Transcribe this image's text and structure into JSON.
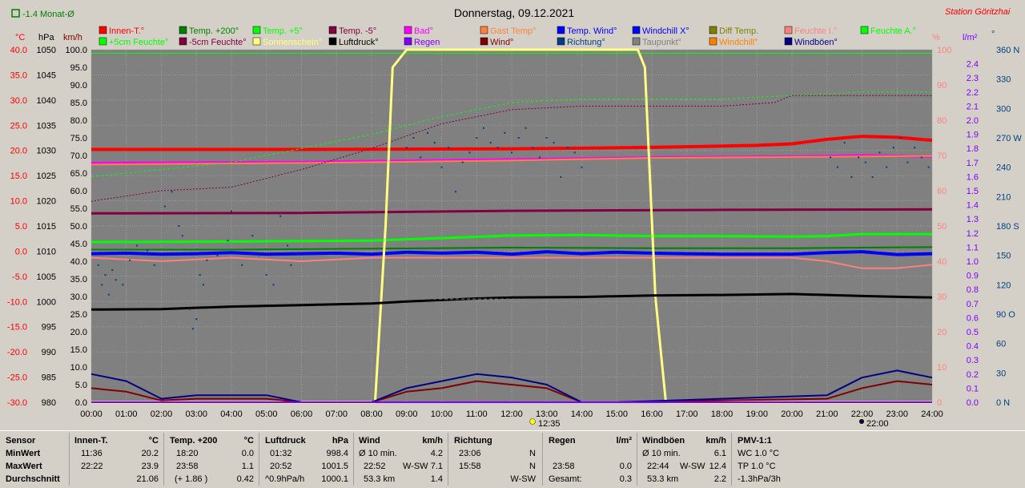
{
  "header": {
    "title": "Donnerstag, 09.12.2021",
    "station": "Station Göritzhai",
    "monthly_avg_label": "-1.4 Monat-Ø"
  },
  "axes": {
    "unit_celsius": "°C",
    "unit_hpa": "hPa",
    "unit_kmh": "km/h",
    "unit_percent": "%",
    "unit_lm2": "l/m²",
    "unit_deg": "°",
    "temp_ticks": [
      "40.0",
      "35.0",
      "30.0",
      "25.0",
      "20.0",
      "15.0",
      "10.0",
      "5.0",
      "0.0",
      "-5.0",
      "-10.0",
      "-15.0",
      "-20.0",
      "-25.0",
      "-30.0"
    ],
    "hpa_ticks": [
      "1050",
      "1045",
      "1040",
      "1035",
      "1030",
      "1025",
      "1020",
      "1015",
      "1010",
      "1005",
      "1000",
      "995",
      "990",
      "985",
      "980"
    ],
    "kmh_ticks": [
      "100.0",
      "95.0",
      "90.0",
      "85.0",
      "80.0",
      "75.0",
      "70.0",
      "65.0",
      "60.0",
      "55.0",
      "50.0",
      "45.0",
      "40.0",
      "35.0",
      "30.0",
      "25.0",
      "20.0",
      "15.0",
      "10.0",
      "5.0",
      "0.0"
    ],
    "pct_ticks": [
      "100",
      "90",
      "80",
      "70",
      "60",
      "50",
      "40",
      "30",
      "20",
      "10",
      "0"
    ],
    "rain_ticks": [
      "2.4",
      "2.3",
      "2.2",
      "2.1",
      "2.0",
      "1.9",
      "1.8",
      "1.7",
      "1.6",
      "1.5",
      "1.4",
      "1.3",
      "1.2",
      "1.1",
      "1.0",
      "0.9",
      "0.8",
      "0.7",
      "0.6",
      "0.5",
      "0.4",
      "0.3",
      "0.2",
      "0.1",
      "0.0"
    ],
    "dir_ticks": [
      "360 N",
      "330",
      "300",
      "270 W",
      "240",
      "210",
      "180 S",
      "150",
      "120",
      "90 O",
      "60",
      "30",
      "0 N"
    ],
    "time_ticks": [
      "00:00",
      "01:00",
      "02:00",
      "03:00",
      "04:00",
      "05:00",
      "06:00",
      "07:00",
      "08:00",
      "09:00",
      "10:00",
      "11:00",
      "12:00",
      "13:00",
      "14:00",
      "15:00",
      "16:00",
      "17:00",
      "18:00",
      "19:00",
      "20:00",
      "21:00",
      "22:00",
      "23:00",
      "24:00"
    ],
    "sun_marker_noon": "12:35",
    "sun_marker_night": "22:00"
  },
  "legend": [
    {
      "label": "Innen-T.°",
      "color": "#ff0000"
    },
    {
      "label": "Temp. +200°",
      "color": "#008000"
    },
    {
      "label": "Temp. +5°",
      "color": "#00ff00"
    },
    {
      "label": "Temp. -5°",
      "color": "#800040"
    },
    {
      "label": "Bad°",
      "color": "#ff00ff"
    },
    {
      "label": "Gast Temp°",
      "color": "#ff8040"
    },
    {
      "label": "Temp. Wind°",
      "color": "#0000ff"
    },
    {
      "label": "Windchill X°",
      "color": "#0000ff"
    },
    {
      "label": "Diff Temp.",
      "color": "#808000"
    },
    {
      "label": "Feuchte I.°",
      "color": "#ff8080"
    },
    {
      "label": "Feuchte A.°",
      "color": "#00ff00"
    },
    {
      "label": "+5cm Feuchte°",
      "color": "#00ff00"
    },
    {
      "label": "-5cm Feuchte°",
      "color": "#800040"
    },
    {
      "label": "Sonnenschein°",
      "color": "#ffff80"
    },
    {
      "label": "Luftdruck°",
      "color": "#000000"
    },
    {
      "label": "Regen",
      "color": "#8000ff"
    },
    {
      "label": "Wind°",
      "color": "#800000"
    },
    {
      "label": "Richtung°",
      "color": "#004080"
    },
    {
      "label": "Taupunkt°",
      "color": "#808080"
    },
    {
      "label": "Windchill°",
      "color": "#ff8000"
    },
    {
      "label": "Windböen°",
      "color": "#000080"
    }
  ],
  "chart_data": {
    "type": "line",
    "title": "Donnerstag, 09.12.2021",
    "xlabel": "",
    "x_unit": "hours",
    "xlim": [
      0,
      24
    ],
    "temp_ylim": [
      -30,
      40
    ],
    "pct_ylim": [
      0,
      100
    ],
    "kmh_ylim": [
      0,
      100
    ],
    "rain_ylim": [
      0,
      2.5
    ],
    "dir_ylim": [
      0,
      360
    ],
    "grid": true,
    "series": [
      {
        "name": "Innen-T.°",
        "axis": "temp",
        "color": "#ff0000",
        "width": 4,
        "x": [
          0,
          6,
          12,
          16,
          19,
          20,
          21,
          22,
          23,
          24
        ],
        "y": [
          20.2,
          20.2,
          20.3,
          20.6,
          21.0,
          21.3,
          22.2,
          22.8,
          22.6,
          22.0
        ]
      },
      {
        "name": "Bad°",
        "axis": "temp",
        "color": "#ff00ff",
        "width": 3,
        "x": [
          0,
          6,
          12,
          16,
          20,
          22,
          24
        ],
        "y": [
          17.5,
          17.7,
          18.2,
          18.6,
          18.8,
          19.0,
          18.8
        ]
      },
      {
        "name": "Gast Temp°",
        "axis": "temp",
        "color": "#ff8040",
        "width": 2,
        "x": [
          0,
          6,
          12,
          16,
          20,
          24
        ],
        "y": [
          17.2,
          17.5,
          18.0,
          18.5,
          18.7,
          18.9
        ]
      },
      {
        "name": "Temp. -5°",
        "axis": "temp",
        "color": "#800040",
        "width": 3,
        "x": [
          0,
          6,
          12,
          18,
          24
        ],
        "y": [
          7.5,
          7.6,
          8.0,
          8.2,
          8.3
        ]
      },
      {
        "name": "Temp. +5°",
        "axis": "temp",
        "color": "#00ff00",
        "width": 3,
        "x": [
          0,
          4,
          8,
          10,
          12,
          14,
          16,
          18,
          20,
          21,
          22,
          24
        ],
        "y": [
          1.8,
          1.9,
          2.1,
          2.6,
          3.1,
          3.2,
          3.0,
          3.0,
          2.9,
          3.0,
          3.4,
          3.4
        ]
      },
      {
        "name": "Temp. +200°",
        "axis": "temp",
        "color": "#008000",
        "width": 2,
        "x": [
          0,
          4,
          8,
          12,
          16,
          20,
          24
        ],
        "y": [
          0.3,
          0.3,
          0.5,
          0.7,
          0.6,
          0.6,
          0.8
        ]
      },
      {
        "name": "Temp. Wind°",
        "axis": "temp",
        "color": "#0000ff",
        "width": 4,
        "x": [
          0,
          1,
          2,
          3,
          4,
          5,
          6,
          7,
          8,
          9,
          10,
          11,
          12,
          13,
          14,
          15,
          16,
          17,
          18,
          19,
          20,
          21,
          22,
          23,
          24
        ],
        "y": [
          -0.5,
          -0.4,
          -0.6,
          -0.5,
          -0.3,
          -0.6,
          -0.5,
          -0.4,
          -0.6,
          -0.2,
          -0.4,
          -0.2,
          -0.6,
          -0.1,
          -0.5,
          -0.2,
          -0.4,
          -0.5,
          -0.6,
          -0.6,
          -0.6,
          -0.3,
          -0.1,
          -0.7,
          -0.5
        ]
      },
      {
        "name": "Feuchte I.°",
        "axis": "pct",
        "color": "#ff8080",
        "width": 2,
        "x": [
          0,
          2,
          4,
          6,
          8,
          10,
          12,
          14,
          16,
          18,
          20,
          21,
          22,
          23,
          24
        ],
        "y": [
          41,
          40,
          41,
          40,
          41,
          41,
          41,
          41,
          41,
          41,
          41,
          40,
          38,
          38,
          39
        ]
      },
      {
        "name": "Feuchte A.°",
        "axis": "pct",
        "color": "#00ff00",
        "width": 1,
        "x": [
          0,
          24
        ],
        "y": [
          99,
          99
        ]
      },
      {
        "name": "+5cm Feuchte°",
        "axis": "pct",
        "color": "#00ff00",
        "width": 1,
        "dash": "3,3",
        "x": [
          0,
          2,
          4,
          6,
          8,
          10,
          12,
          14,
          16,
          18,
          20,
          22,
          24
        ],
        "y": [
          64,
          66,
          68,
          72,
          76,
          81,
          85,
          86,
          86,
          86,
          87,
          88,
          88
        ]
      },
      {
        "name": "-5cm Feuchte°",
        "axis": "pct",
        "color": "#800040",
        "width": 1,
        "dash": "2,2",
        "x": [
          0,
          2,
          4,
          6,
          8,
          10,
          12,
          14,
          16,
          18,
          19.5,
          20,
          22,
          24
        ],
        "y": [
          57,
          60,
          61,
          66,
          72,
          79,
          83,
          84,
          84,
          84,
          85,
          87,
          87,
          87
        ]
      },
      {
        "name": "Sonnenschein°",
        "axis": "pct",
        "color": "#ffff80",
        "width": 3,
        "x": [
          0,
          8.1,
          8.4,
          8.6,
          9.0,
          15.6,
          15.8,
          16.1,
          16.4,
          24
        ],
        "y": [
          0,
          0,
          50,
          95,
          100,
          100,
          95,
          30,
          0,
          0
        ]
      },
      {
        "name": "Luftdruck°",
        "axis": "hpa",
        "color": "#000000",
        "width": 3,
        "x": [
          0,
          2,
          4,
          6,
          8,
          9,
          10,
          11,
          12,
          14,
          16,
          18,
          20,
          22,
          24
        ],
        "y": [
          998.4,
          998.5,
          999.0,
          999.3,
          999.6,
          1000.0,
          1000.3,
          1000.6,
          1000.8,
          1000.9,
          1001.2,
          1001.3,
          1001.5,
          1001.1,
          1000.8
        ]
      },
      {
        "name": "Wind°",
        "axis": "kmh",
        "color": "#800000",
        "width": 2,
        "x": [
          0,
          1,
          2,
          3,
          4,
          5,
          6,
          8,
          9,
          10,
          11,
          12,
          13,
          14,
          15,
          21,
          22,
          23,
          24
        ],
        "y": [
          4,
          3,
          0.5,
          1,
          1,
          1,
          0,
          0,
          3,
          4,
          6,
          5,
          4,
          0,
          0,
          1,
          4,
          6,
          5
        ]
      },
      {
        "name": "Windböen°",
        "axis": "kmh",
        "color": "#000080",
        "width": 2,
        "x": [
          0,
          1,
          2,
          3,
          4,
          5,
          6,
          8,
          9,
          10,
          11,
          12,
          13,
          14,
          15,
          21,
          22,
          23,
          24
        ],
        "y": [
          8,
          6,
          1,
          2,
          2,
          2,
          0,
          0,
          4,
          6,
          8,
          7,
          5,
          0,
          0,
          2,
          7,
          9,
          7
        ]
      },
      {
        "name": "Regen",
        "axis": "rain",
        "color": "#8000ff",
        "width": 2,
        "x": [
          0,
          24
        ],
        "y": [
          0,
          0
        ]
      },
      {
        "name": "Taupunkt°",
        "axis": "temp",
        "color": "#808080",
        "width": 1,
        "dash": "4,3",
        "x": [
          0,
          24
        ],
        "y": [
          -9.5,
          -9.5
        ]
      }
    ],
    "direction_points": [
      [
        0.2,
        140
      ],
      [
        0.3,
        120
      ],
      [
        0.4,
        130
      ],
      [
        0.5,
        110
      ],
      [
        0.6,
        135
      ],
      [
        0.7,
        125
      ],
      [
        0.9,
        120
      ],
      [
        1.1,
        145
      ],
      [
        1.3,
        160
      ],
      [
        1.6,
        155
      ],
      [
        1.8,
        140
      ],
      [
        2.1,
        200
      ],
      [
        2.3,
        215
      ],
      [
        2.5,
        180
      ],
      [
        2.6,
        170
      ],
      [
        2.8,
        95
      ],
      [
        2.9,
        75
      ],
      [
        3.0,
        85
      ],
      [
        3.1,
        130
      ],
      [
        3.2,
        120
      ],
      [
        3.3,
        145
      ],
      [
        3.6,
        150
      ],
      [
        3.9,
        165
      ],
      [
        4.0,
        195
      ],
      [
        4.3,
        140
      ],
      [
        4.6,
        170
      ],
      [
        4.8,
        150
      ],
      [
        5.0,
        130
      ],
      [
        5.2,
        120
      ],
      [
        5.4,
        190
      ],
      [
        5.6,
        160
      ],
      [
        5.7,
        140
      ],
      [
        9.0,
        260
      ],
      [
        9.2,
        270
      ],
      [
        9.4,
        250
      ],
      [
        9.6,
        275
      ],
      [
        9.8,
        265
      ],
      [
        10.0,
        240
      ],
      [
        10.2,
        260
      ],
      [
        10.4,
        215
      ],
      [
        10.6,
        245
      ],
      [
        10.8,
        255
      ],
      [
        11.0,
        270
      ],
      [
        11.2,
        280
      ],
      [
        11.4,
        265
      ],
      [
        11.6,
        260
      ],
      [
        11.8,
        275
      ],
      [
        12.0,
        255
      ],
      [
        12.2,
        270
      ],
      [
        12.4,
        280
      ],
      [
        12.6,
        260
      ],
      [
        12.8,
        250
      ],
      [
        13.0,
        270
      ],
      [
        13.2,
        265
      ],
      [
        13.4,
        230
      ],
      [
        13.6,
        260
      ],
      [
        13.8,
        255
      ],
      [
        14.0,
        240
      ],
      [
        21.1,
        250
      ],
      [
        21.3,
        240
      ],
      [
        21.5,
        265
      ],
      [
        21.7,
        230
      ],
      [
        21.9,
        250
      ],
      [
        22.1,
        245
      ],
      [
        22.3,
        230
      ],
      [
        22.5,
        255
      ],
      [
        22.7,
        240
      ],
      [
        22.9,
        260
      ],
      [
        23.1,
        270
      ],
      [
        23.3,
        245
      ],
      [
        23.5,
        260
      ],
      [
        23.7,
        250
      ],
      [
        23.9,
        240
      ]
    ]
  },
  "stats": {
    "sensor": {
      "header": "Sensor",
      "min": "MinWert",
      "max": "MaxWert",
      "avg": "Durchschnitt"
    },
    "innen": {
      "header": "Innen-T.",
      "unit": "°C",
      "min_time": "11:36",
      "min_val": "20.2",
      "max_time": "22:22",
      "max_val": "23.9",
      "avg_val": "21.06"
    },
    "temp200": {
      "header": "Temp. +200",
      "unit": "°C",
      "min_time": "18:20",
      "min_val": "0.0",
      "max_time": "23:58",
      "max_val": "1.1",
      "avg_note": "(+ 1.86 )",
      "avg_val": "0.42"
    },
    "luftdruck": {
      "header": "Luftdruck",
      "unit": "hPa",
      "min_time": "01:32",
      "min_val": "998.4",
      "max_time": "20:52",
      "max_val": "1001.5",
      "avg_note": "^0.9hPa/h",
      "avg_val": "1000.1"
    },
    "wind": {
      "header": "Wind",
      "unit": "km/h",
      "min_time": "Ø 10 min.",
      "min_val": "4.2",
      "max_time": "22:52",
      "max_dir": "W-SW",
      "max_val": "7.1",
      "avg_note": "53.3 km",
      "avg_val": "1.4"
    },
    "richtung": {
      "header": "Richtung",
      "min_time": "23:06",
      "min_val": "N",
      "max_time": "15:58",
      "max_val": "N",
      "avg_val": "W-SW"
    },
    "regen": {
      "header": "Regen",
      "unit": "l/m²",
      "max_time": "23:58",
      "max_val": "0.0",
      "avg_note": "Gesamt:",
      "avg_val": "0.3"
    },
    "boeen": {
      "header": "Windböen",
      "unit": "km/h",
      "min_time": "Ø 10 min.",
      "min_val": "6.1",
      "max_time": "22:44",
      "max_dir": "W-SW",
      "max_val": "12.4",
      "avg_note": "53.3 km",
      "avg_val": "2.2"
    },
    "pmv": {
      "header": "PMV-1:1",
      "wc": "WC 1.0 °C",
      "tp": "TP 1.0 °C",
      "trend": "-1.3hPa/3h"
    }
  }
}
